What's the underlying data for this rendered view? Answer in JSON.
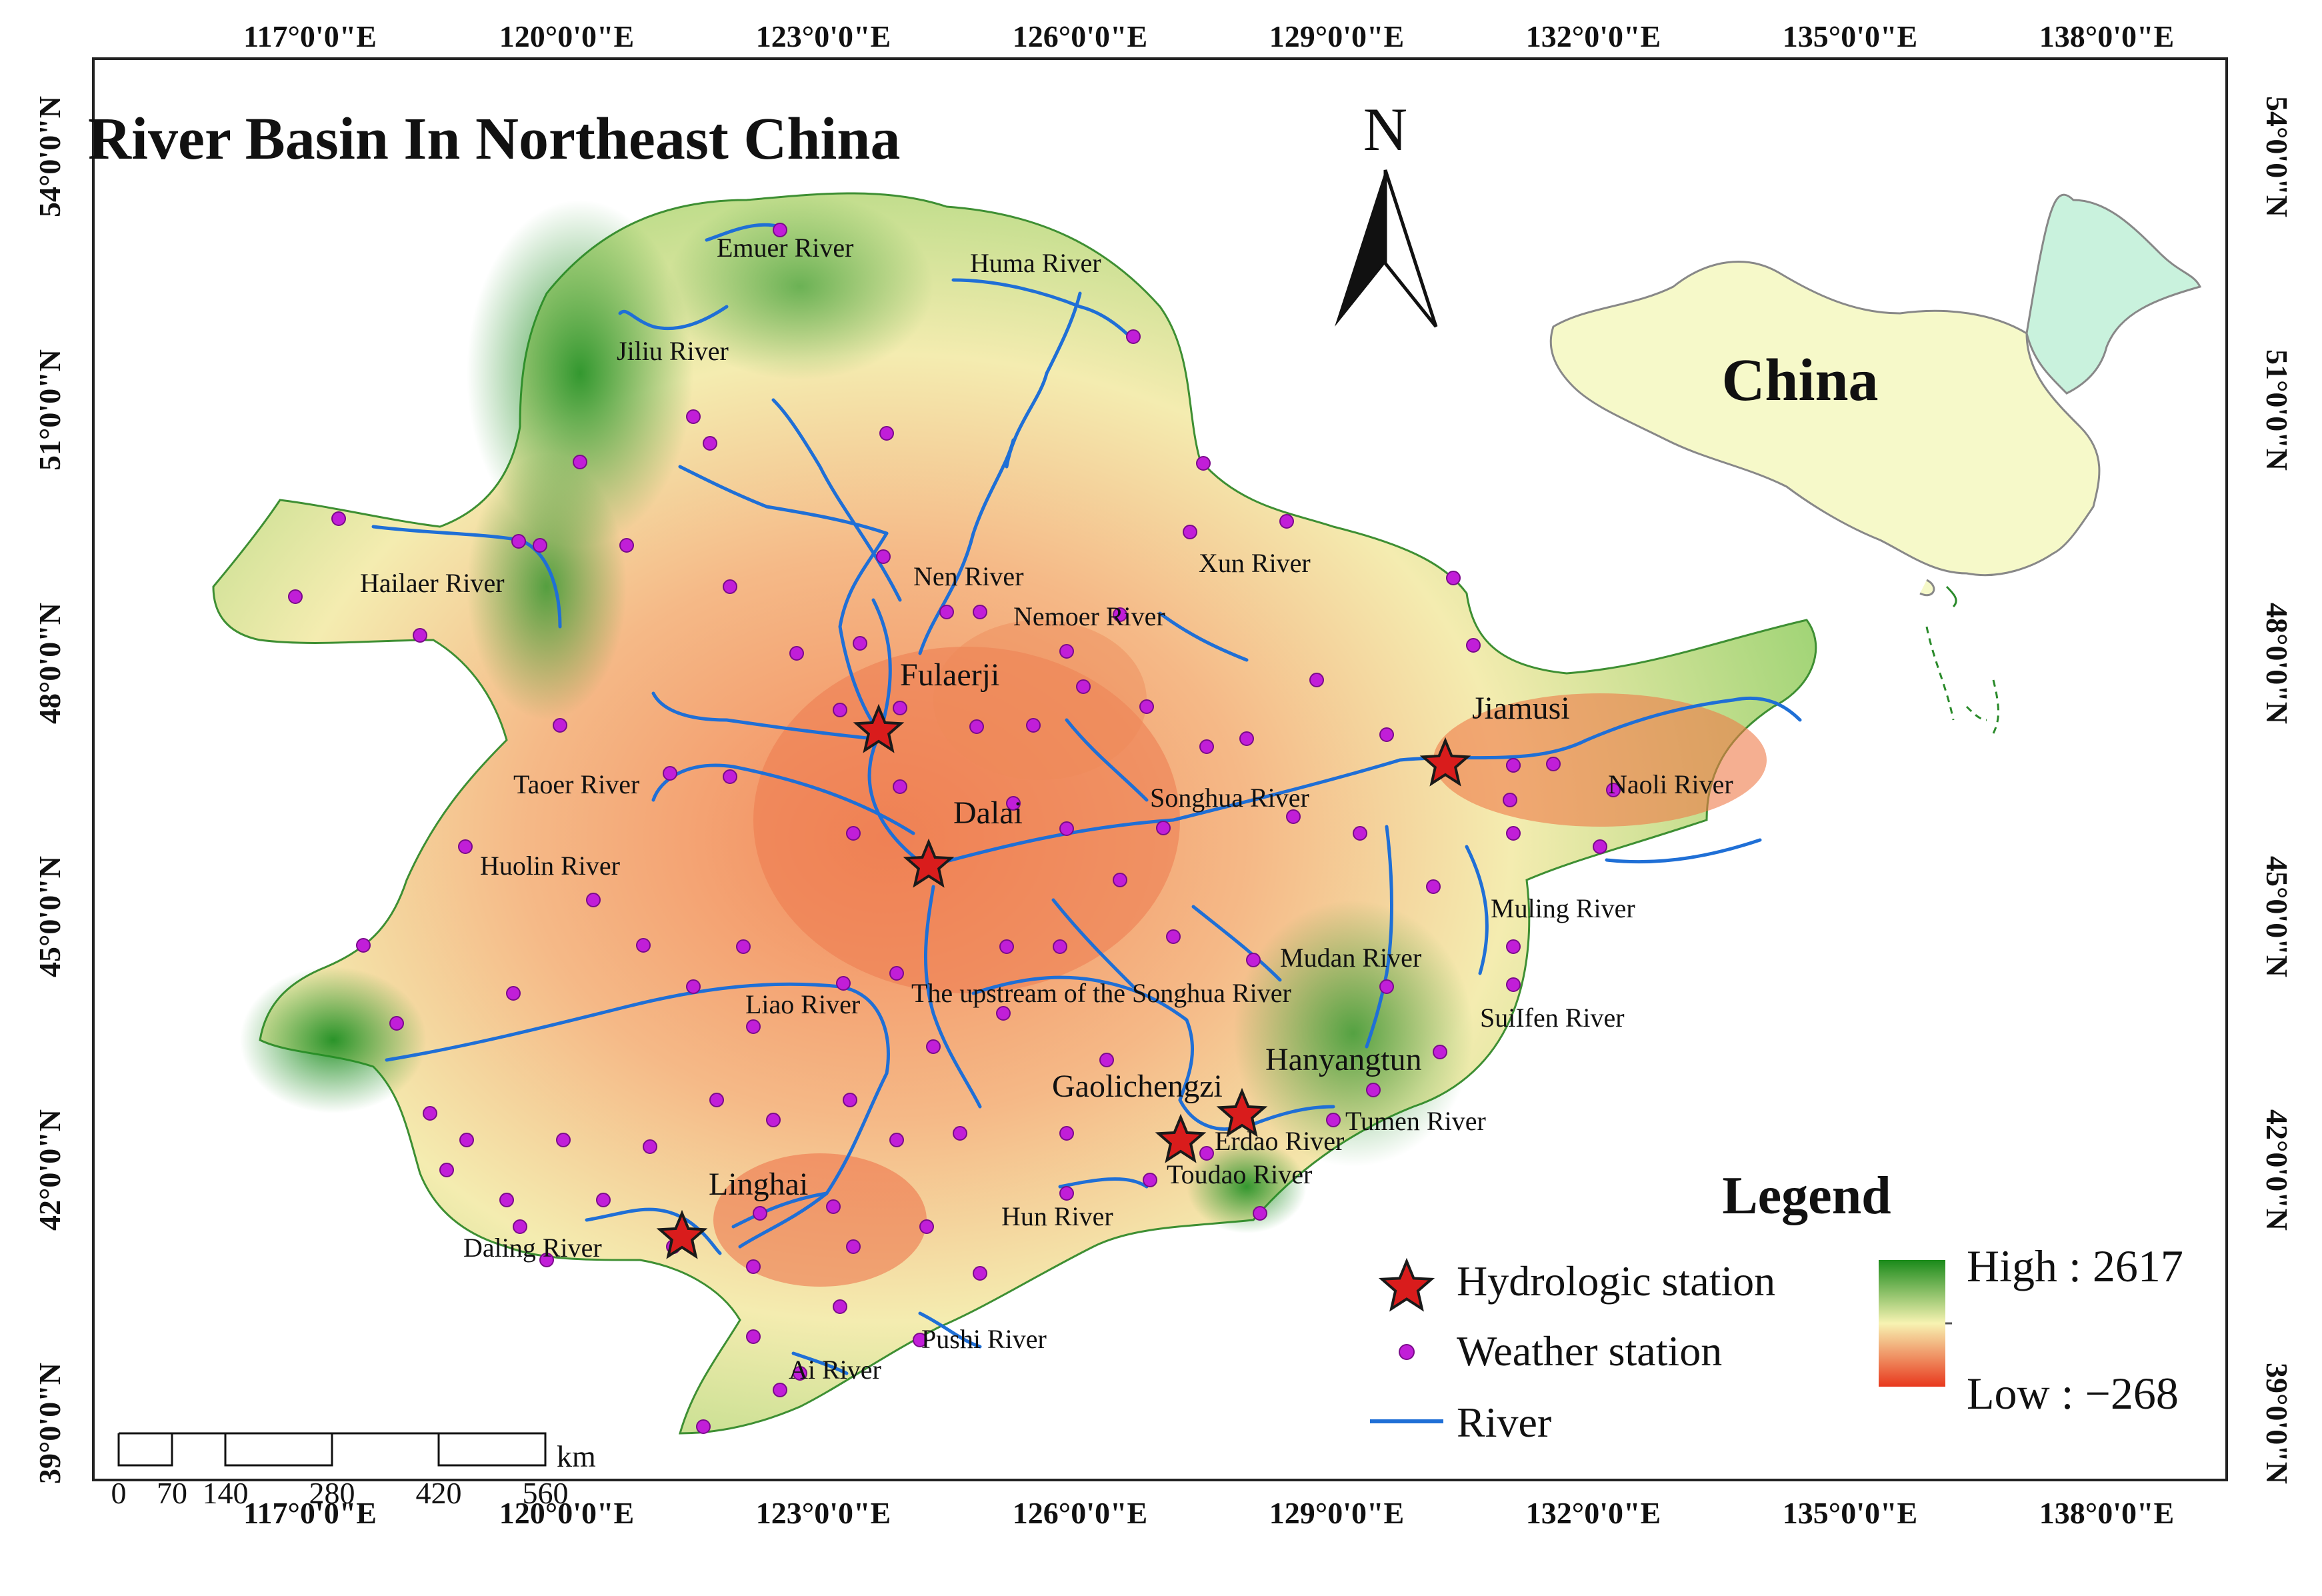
{
  "title": "River Basin In Northeast China",
  "north_arrow": {
    "label": "N"
  },
  "inset": {
    "label": "China",
    "highlight_color": "#c9f2dd",
    "base_color": "#f6f9c9"
  },
  "longitude_ticks": [
    "117°0'0\"E",
    "120°0'0\"E",
    "123°0'0\"E",
    "126°0'0\"E",
    "129°0'0\"E",
    "132°0'0\"E",
    "135°0'0\"E",
    "138°0'0\"E"
  ],
  "latitude_ticks": [
    "54°0'0\"N",
    "51°0'0\"N",
    "48°0'0\"N",
    "45°0'0\"N",
    "42°0'0\"N",
    "39°0'0\"N"
  ],
  "rivers": [
    "Emuer River",
    "Huma River",
    "Jiliu River",
    "Hailaer River",
    "Nen River",
    "Nemoer River",
    "Xun River",
    "Taoer River",
    "Songhua River",
    "Naoli River",
    "Huolin River",
    "Muling River",
    "Mudan River",
    "The upstream of the Songhua River",
    "Liao River",
    "SuiIfen River",
    "Tumen River",
    "Erdao River",
    "Toudao River",
    "Hun River",
    "Daling River",
    "Pushi River",
    "Ai River"
  ],
  "stations": [
    "Fulaerji",
    "Dalai",
    "Jiamusi",
    "Hanyangtun",
    "Gaolichengzi",
    "Linghai"
  ],
  "legend": {
    "title": "Legend",
    "hydrologic": "Hydrologic station",
    "weather": "Weather station",
    "river": "River",
    "high": "High : 2617",
    "low": "Low : −268"
  },
  "elevation": {
    "high": 2617,
    "low": -268,
    "high_color": "#1a8a1a",
    "mid_color": "#f7f3b2",
    "low_color": "#e8381d"
  },
  "scale_bar": {
    "labels": [
      "0",
      "70",
      "140",
      "280",
      "420",
      "560"
    ],
    "unit": "km"
  },
  "colors": {
    "river": "#1f6fd6",
    "hydrologic_station": "#d91c1c",
    "weather_station": "#c11ed8"
  }
}
